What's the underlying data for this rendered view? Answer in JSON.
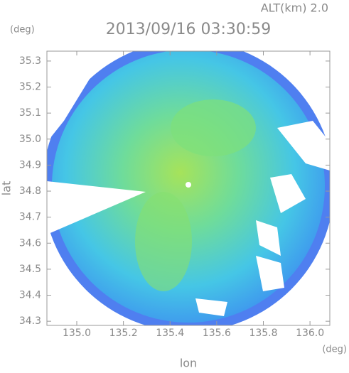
{
  "chart_data": {
    "type": "map",
    "header": "ALT(km) 2.0",
    "title": "2013/09/16 03:30:59",
    "y_unit": "(deg)",
    "x_unit": "(deg)",
    "xlabel": "lon",
    "ylabel": "lat",
    "xlim": [
      134.872,
      136.085
    ],
    "ylim": [
      34.284,
      35.338
    ],
    "xticks": [
      {
        "value": 135,
        "label": "135.0"
      },
      135.2,
      135.4,
      135.6,
      135.8,
      {
        "value": 136,
        "label": "136.0"
      }
    ],
    "yticks": [
      34.3,
      34.4,
      34.5,
      34.6,
      34.7,
      34.8,
      34.9,
      {
        "value": 35,
        "label": "35.0"
      },
      35.1,
      35.2,
      35.3
    ],
    "grid": false
  }
}
